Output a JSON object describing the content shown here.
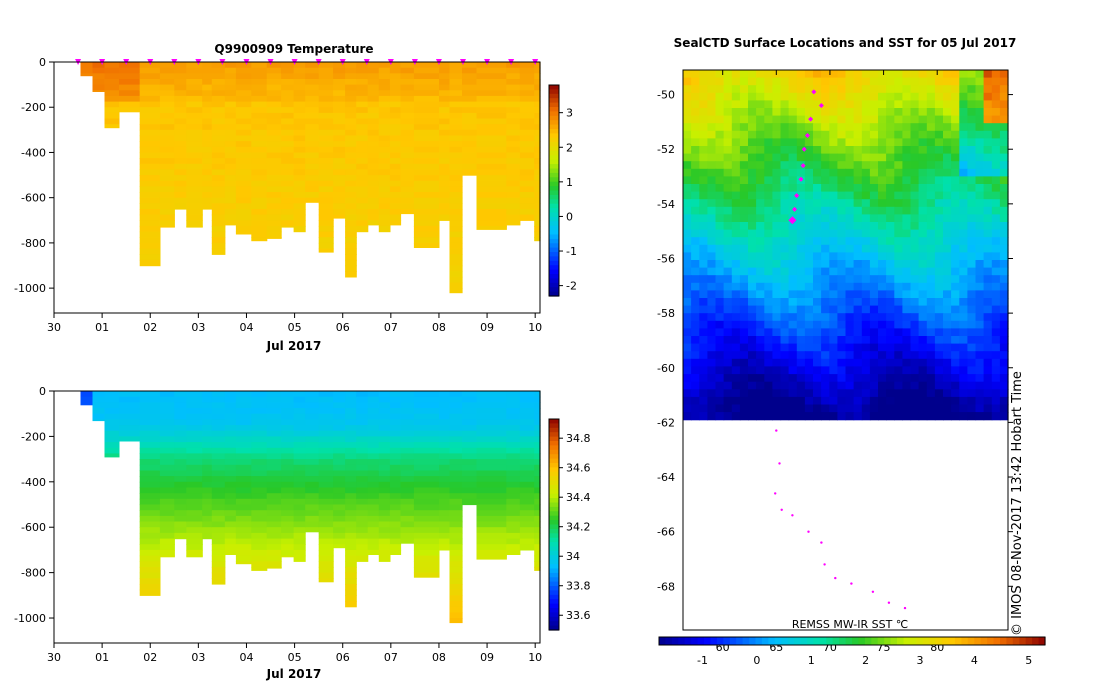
{
  "figure_title": "Q9900909 Temperature",
  "chart_data": [
    {
      "id": "temperature",
      "type": "heatmap",
      "title": "Q9900909  Temperature",
      "xlabel": "Jul 2017",
      "ylabel": "",
      "x_ticks": [
        "30",
        "01",
        "02",
        "03",
        "04",
        "05",
        "06",
        "07",
        "08",
        "09",
        "10"
      ],
      "xlim": [
        -1,
        9.1
      ],
      "y_ticks": [
        0,
        -200,
        -400,
        -600,
        -800,
        -1000
      ],
      "ylim": [
        -1110,
        0
      ],
      "colorbar": {
        "min": -2.3,
        "max": 3.8,
        "ticks": [
          3,
          2,
          1,
          0,
          -1,
          -2
        ]
      },
      "profile_marker_days": [
        -0.5,
        0,
        0.5,
        1,
        1.5,
        2,
        2.5,
        3,
        3.5,
        4,
        4.5,
        5,
        5.5,
        6,
        6.5,
        7,
        7.5,
        8,
        8.5,
        9
      ],
      "profiles": [
        {
          "t0": -0.45,
          "t1": -0.2,
          "maxdepth": 60
        },
        {
          "t0": -0.2,
          "t1": 0.05,
          "maxdepth": 130
        },
        {
          "t0": 0.05,
          "t1": 0.35,
          "maxdepth": 290
        },
        {
          "t0": 0.35,
          "t1": 0.78,
          "maxdepth": 220
        },
        {
          "t0": 0.78,
          "t1": 1.2,
          "maxdepth": 900
        },
        {
          "t0": 1.2,
          "t1": 1.5,
          "maxdepth": 730
        },
        {
          "t0": 1.5,
          "t1": 1.75,
          "maxdepth": 650
        },
        {
          "t0": 1.75,
          "t1": 2.08,
          "maxdepth": 730
        },
        {
          "t0": 2.08,
          "t1": 2.28,
          "maxdepth": 650
        },
        {
          "t0": 2.28,
          "t1": 2.55,
          "maxdepth": 850
        },
        {
          "t0": 2.55,
          "t1": 2.78,
          "maxdepth": 720
        },
        {
          "t0": 2.78,
          "t1": 3.1,
          "maxdepth": 760
        },
        {
          "t0": 3.1,
          "t1": 3.42,
          "maxdepth": 790
        },
        {
          "t0": 3.42,
          "t1": 3.72,
          "maxdepth": 780
        },
        {
          "t0": 3.72,
          "t1": 3.98,
          "maxdepth": 730
        },
        {
          "t0": 3.98,
          "t1": 4.22,
          "maxdepth": 750
        },
        {
          "t0": 4.22,
          "t1": 4.5,
          "maxdepth": 620
        },
        {
          "t0": 4.5,
          "t1": 4.8,
          "maxdepth": 840
        },
        {
          "t0": 4.8,
          "t1": 5.05,
          "maxdepth": 690
        },
        {
          "t0": 5.05,
          "t1": 5.28,
          "maxdepth": 950
        },
        {
          "t0": 5.28,
          "t1": 5.52,
          "maxdepth": 750
        },
        {
          "t0": 5.52,
          "t1": 5.75,
          "maxdepth": 720
        },
        {
          "t0": 5.75,
          "t1": 5.98,
          "maxdepth": 750
        },
        {
          "t0": 5.98,
          "t1": 6.2,
          "maxdepth": 720
        },
        {
          "t0": 6.2,
          "t1": 6.48,
          "maxdepth": 670
        },
        {
          "t0": 6.48,
          "t1": 7.0,
          "maxdepth": 820
        },
        {
          "t0": 7.0,
          "t1": 7.22,
          "maxdepth": 700
        },
        {
          "t0": 7.22,
          "t1": 7.48,
          "maxdepth": 1020
        },
        {
          "t0": 7.48,
          "t1": 7.78,
          "maxdepth": 500
        },
        {
          "t0": 7.78,
          "t1": 8.4,
          "maxdepth": 740
        },
        {
          "t0": 8.4,
          "t1": 8.68,
          "maxdepth": 720
        },
        {
          "t0": 8.68,
          "t1": 8.98,
          "maxdepth": 700
        },
        {
          "t0": 8.98,
          "t1": 9.1,
          "maxdepth": 790
        }
      ]
    },
    {
      "id": "salinity",
      "type": "heatmap",
      "title": "",
      "xlabel": "Jul 2017",
      "ylabel": "",
      "x_ticks": [
        "30",
        "01",
        "02",
        "03",
        "04",
        "05",
        "06",
        "07",
        "08",
        "09",
        "10"
      ],
      "xlim": [
        -1,
        9.1
      ],
      "y_ticks": [
        0,
        -200,
        -400,
        -600,
        -800,
        -1000
      ],
      "ylim": [
        -1110,
        0
      ],
      "colorbar": {
        "min": 33.5,
        "max": 34.93,
        "ticks": [
          34.8,
          34.6,
          34.4,
          34.2,
          34,
          33.8,
          33.6
        ]
      }
    },
    {
      "id": "sst-map",
      "type": "heatmap",
      "title": "SealCTD Surface Locations and SST for 05 Jul 2017",
      "lat_ticks": [
        -50,
        -52,
        -54,
        -56,
        -58,
        -60,
        -62,
        -64,
        -66,
        -68
      ],
      "lat_range": [
        -49.1,
        -69.6
      ],
      "lon_ticks": [
        60,
        65,
        70,
        75,
        80
      ],
      "lon_range": [
        56.3,
        86.6
      ],
      "sst_label": "REMSS MW-IR SST ℃",
      "sst_colorbar": {
        "min": -1.8,
        "max": 5.3,
        "ticks": [
          -1,
          0,
          1,
          2,
          3,
          4,
          5
        ]
      },
      "ice_edge_lat": -61.9,
      "profile_positions": [
        {
          "lon": 68.5,
          "lat": -49.9
        },
        {
          "lon": 69.2,
          "lat": -50.4
        },
        {
          "lon": 68.2,
          "lat": -50.9
        },
        {
          "lon": 67.9,
          "lat": -51.5
        },
        {
          "lon": 67.6,
          "lat": -52.0
        },
        {
          "lon": 67.5,
          "lat": -52.6
        },
        {
          "lon": 67.3,
          "lat": -53.1
        },
        {
          "lon": 66.9,
          "lat": -53.7
        },
        {
          "lon": 66.7,
          "lat": -54.2
        },
        {
          "lon": 66.5,
          "lat": -54.6
        }
      ],
      "track_points": [
        {
          "lon": 65.0,
          "lat": -62.3
        },
        {
          "lon": 65.3,
          "lat": -63.5
        },
        {
          "lon": 64.9,
          "lat": -64.6
        },
        {
          "lon": 65.5,
          "lat": -65.2
        },
        {
          "lon": 66.5,
          "lat": -65.4
        },
        {
          "lon": 68.0,
          "lat": -66.0
        },
        {
          "lon": 69.2,
          "lat": -66.4
        },
        {
          "lon": 69.5,
          "lat": -67.2
        },
        {
          "lon": 70.5,
          "lat": -67.7
        },
        {
          "lon": 72.0,
          "lat": -67.9
        },
        {
          "lon": 74.0,
          "lat": -68.2
        },
        {
          "lon": 75.5,
          "lat": -68.6
        },
        {
          "lon": 77.0,
          "lat": -68.8
        }
      ]
    }
  ],
  "watermark": "© IMOS 08-Nov-2017 13:42 Hobart Time",
  "colors": {
    "ice": "#ffffff",
    "track": "#ff00ff",
    "axes": "#000000"
  }
}
